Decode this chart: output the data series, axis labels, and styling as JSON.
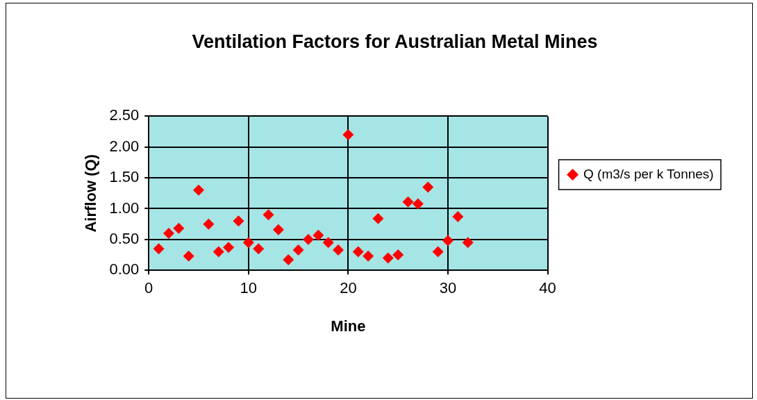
{
  "chart_data": {
    "type": "scatter",
    "title": "Ventilation Factors for Australian Metal Mines",
    "xlabel": "Mine",
    "ylabel": "Airflow (Q)",
    "series": [
      {
        "name": "Q (m3/s per k Tonnes)",
        "color": "#ff0000",
        "x": [
          1,
          2,
          3,
          4,
          5,
          6,
          7,
          8,
          9,
          10,
          11,
          12,
          13,
          14,
          15,
          16,
          17,
          18,
          19,
          20,
          21,
          22,
          23,
          24,
          25,
          26,
          27,
          28,
          29,
          30,
          31,
          32
        ],
        "values": [
          0.35,
          0.6,
          0.68,
          0.23,
          1.3,
          0.75,
          0.3,
          0.37,
          0.8,
          0.45,
          0.35,
          0.9,
          0.66,
          0.17,
          0.33,
          0.5,
          0.57,
          0.45,
          0.33,
          2.2,
          0.3,
          0.23,
          0.84,
          0.2,
          0.25,
          1.11,
          1.08,
          1.35,
          0.3,
          0.48,
          0.87,
          0.45
        ]
      }
    ],
    "xlim": [
      0,
      40
    ],
    "xticks": [
      0,
      10,
      20,
      30,
      40
    ],
    "ylim": [
      0,
      2.5
    ],
    "yticks": [
      {
        "value": 0,
        "label": "0.00"
      },
      {
        "value": 0.5,
        "label": "0.50"
      },
      {
        "value": 1,
        "label": "1.00"
      },
      {
        "value": 1.5,
        "label": "1.50"
      },
      {
        "value": 2,
        "label": "2.00"
      },
      {
        "value": 2.5,
        "label": "2.50"
      }
    ],
    "grid": true,
    "legend": "right",
    "marker": "diamond"
  }
}
